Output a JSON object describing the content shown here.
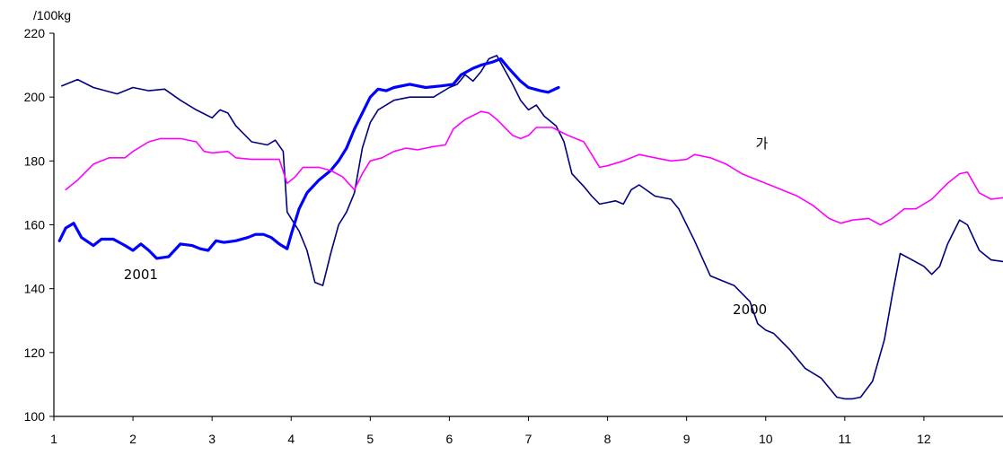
{
  "chart_data": {
    "type": "line",
    "title": "",
    "xlabel": "",
    "ylabel": "/100kg",
    "xlim": [
      1,
      13
    ],
    "ylim": [
      100,
      220
    ],
    "x_ticks": [
      1,
      2,
      3,
      4,
      5,
      6,
      7,
      8,
      9,
      10,
      11,
      12
    ],
    "y_ticks": [
      100,
      120,
      140,
      160,
      180,
      200,
      220
    ],
    "grid": false,
    "legend": "none",
    "series": [
      {
        "name": "2000",
        "color": "#000080",
        "label_at": [
          9.8,
          132
        ],
        "points": [
          [
            1.1,
            203.5
          ],
          [
            1.3,
            205.5
          ],
          [
            1.5,
            203
          ],
          [
            1.8,
            201
          ],
          [
            2.0,
            203
          ],
          [
            2.2,
            202
          ],
          [
            2.4,
            202.5
          ],
          [
            2.6,
            199
          ],
          [
            2.8,
            196
          ],
          [
            3.0,
            193.5
          ],
          [
            3.1,
            196
          ],
          [
            3.2,
            195
          ],
          [
            3.3,
            191
          ],
          [
            3.5,
            186
          ],
          [
            3.7,
            185
          ],
          [
            3.8,
            186.5
          ],
          [
            3.9,
            183
          ],
          [
            3.95,
            164
          ],
          [
            4.1,
            158
          ],
          [
            4.2,
            152
          ],
          [
            4.3,
            142
          ],
          [
            4.4,
            141
          ],
          [
            4.5,
            151
          ],
          [
            4.6,
            160
          ],
          [
            4.7,
            164
          ],
          [
            4.8,
            170
          ],
          [
            4.9,
            184
          ],
          [
            5.0,
            192
          ],
          [
            5.1,
            196
          ],
          [
            5.3,
            199
          ],
          [
            5.5,
            200
          ],
          [
            5.7,
            200
          ],
          [
            5.8,
            200
          ],
          [
            6.0,
            203
          ],
          [
            6.1,
            204
          ],
          [
            6.2,
            207
          ],
          [
            6.3,
            205
          ],
          [
            6.4,
            208
          ],
          [
            6.5,
            212
          ],
          [
            6.6,
            213
          ],
          [
            6.8,
            204
          ],
          [
            6.9,
            199
          ],
          [
            7.0,
            196
          ],
          [
            7.1,
            197.5
          ],
          [
            7.2,
            194
          ],
          [
            7.35,
            191
          ],
          [
            7.45,
            186
          ],
          [
            7.55,
            176
          ],
          [
            7.7,
            172
          ],
          [
            7.8,
            169
          ],
          [
            7.9,
            166.5
          ],
          [
            8.0,
            167
          ],
          [
            8.1,
            167.5
          ],
          [
            8.2,
            166.5
          ],
          [
            8.3,
            171
          ],
          [
            8.4,
            172.5
          ],
          [
            8.6,
            169
          ],
          [
            8.8,
            168
          ],
          [
            8.9,
            165
          ],
          [
            9.0,
            160
          ],
          [
            9.1,
            155
          ],
          [
            9.3,
            144
          ],
          [
            9.4,
            143
          ],
          [
            9.6,
            141
          ],
          [
            9.8,
            136
          ],
          [
            9.9,
            129
          ],
          [
            10.0,
            127
          ],
          [
            10.1,
            126
          ],
          [
            10.3,
            121
          ],
          [
            10.5,
            115
          ],
          [
            10.7,
            112
          ],
          [
            10.9,
            106
          ],
          [
            11.0,
            105.5
          ],
          [
            11.1,
            105.5
          ],
          [
            11.2,
            106
          ],
          [
            11.35,
            111
          ],
          [
            11.5,
            124
          ],
          [
            11.6,
            138
          ],
          [
            11.7,
            151
          ],
          [
            11.85,
            149
          ],
          [
            12.0,
            147
          ],
          [
            12.1,
            144.5
          ],
          [
            12.2,
            147
          ],
          [
            12.3,
            154
          ],
          [
            12.45,
            161.5
          ],
          [
            12.55,
            160
          ],
          [
            12.7,
            152
          ],
          [
            12.85,
            149
          ],
          [
            13.0,
            148.5
          ]
        ]
      },
      {
        "name": "2001",
        "color": "#0000ff",
        "label_at": [
          2.1,
          143
        ],
        "points": [
          [
            1.07,
            155
          ],
          [
            1.15,
            159
          ],
          [
            1.25,
            160.5
          ],
          [
            1.35,
            156
          ],
          [
            1.5,
            153.5
          ],
          [
            1.6,
            155.5
          ],
          [
            1.75,
            155.5
          ],
          [
            1.9,
            153.5
          ],
          [
            2.0,
            152
          ],
          [
            2.1,
            154
          ],
          [
            2.2,
            152
          ],
          [
            2.3,
            149.5
          ],
          [
            2.45,
            150
          ],
          [
            2.6,
            154
          ],
          [
            2.75,
            153.5
          ],
          [
            2.85,
            152.5
          ],
          [
            2.95,
            152
          ],
          [
            3.05,
            155
          ],
          [
            3.15,
            154.5
          ],
          [
            3.3,
            155
          ],
          [
            3.45,
            156
          ],
          [
            3.55,
            157
          ],
          [
            3.65,
            157
          ],
          [
            3.75,
            156
          ],
          [
            3.85,
            154
          ],
          [
            3.95,
            152.5
          ],
          [
            4.0,
            157
          ],
          [
            4.1,
            165
          ],
          [
            4.2,
            170
          ],
          [
            4.35,
            174
          ],
          [
            4.5,
            177
          ],
          [
            4.6,
            180
          ],
          [
            4.7,
            184
          ],
          [
            4.8,
            190
          ],
          [
            4.9,
            195
          ],
          [
            5.0,
            200
          ],
          [
            5.1,
            202.5
          ],
          [
            5.2,
            202
          ],
          [
            5.3,
            203
          ],
          [
            5.5,
            204
          ],
          [
            5.7,
            203
          ],
          [
            5.9,
            203.5
          ],
          [
            6.05,
            204
          ],
          [
            6.15,
            207
          ],
          [
            6.3,
            209
          ],
          [
            6.4,
            210
          ],
          [
            6.55,
            211
          ],
          [
            6.65,
            212
          ],
          [
            6.75,
            209
          ],
          [
            6.9,
            205
          ],
          [
            7.0,
            203
          ],
          [
            7.15,
            202
          ],
          [
            7.25,
            201.5
          ],
          [
            7.38,
            203
          ]
        ]
      },
      {
        "name": "가",
        "color": "#ff00ff",
        "label_at": [
          9.95,
          184
        ],
        "points": [
          [
            1.15,
            171
          ],
          [
            1.3,
            174
          ],
          [
            1.5,
            179
          ],
          [
            1.7,
            181
          ],
          [
            1.9,
            181
          ],
          [
            2.0,
            183
          ],
          [
            2.2,
            186
          ],
          [
            2.35,
            187
          ],
          [
            2.6,
            187
          ],
          [
            2.8,
            186
          ],
          [
            2.9,
            183
          ],
          [
            3.0,
            182.5
          ],
          [
            3.2,
            183
          ],
          [
            3.3,
            181
          ],
          [
            3.5,
            180.5
          ],
          [
            3.7,
            180.5
          ],
          [
            3.85,
            180.5
          ],
          [
            3.95,
            173
          ],
          [
            4.05,
            175
          ],
          [
            4.15,
            178
          ],
          [
            4.35,
            178
          ],
          [
            4.5,
            177
          ],
          [
            4.65,
            175
          ],
          [
            4.8,
            171
          ],
          [
            4.9,
            176
          ],
          [
            5.0,
            180
          ],
          [
            5.15,
            181
          ],
          [
            5.3,
            183
          ],
          [
            5.45,
            184
          ],
          [
            5.6,
            183.5
          ],
          [
            5.8,
            184.5
          ],
          [
            5.95,
            185
          ],
          [
            6.05,
            190
          ],
          [
            6.2,
            193
          ],
          [
            6.4,
            195.5
          ],
          [
            6.5,
            195
          ],
          [
            6.6,
            193
          ],
          [
            6.8,
            188
          ],
          [
            6.9,
            187
          ],
          [
            7.0,
            188
          ],
          [
            7.1,
            190.5
          ],
          [
            7.3,
            190.5
          ],
          [
            7.5,
            188
          ],
          [
            7.7,
            186
          ],
          [
            7.8,
            182
          ],
          [
            7.9,
            178
          ],
          [
            8.0,
            178.5
          ],
          [
            8.2,
            180
          ],
          [
            8.4,
            182
          ],
          [
            8.6,
            181
          ],
          [
            8.8,
            180
          ],
          [
            9.0,
            180.5
          ],
          [
            9.1,
            182
          ],
          [
            9.3,
            181
          ],
          [
            9.5,
            179
          ],
          [
            9.7,
            176
          ],
          [
            9.9,
            174
          ],
          [
            10.0,
            173
          ],
          [
            10.2,
            171
          ],
          [
            10.4,
            169
          ],
          [
            10.6,
            166
          ],
          [
            10.8,
            162
          ],
          [
            10.95,
            160.5
          ],
          [
            11.1,
            161.5
          ],
          [
            11.3,
            162
          ],
          [
            11.45,
            160
          ],
          [
            11.6,
            162
          ],
          [
            11.75,
            165
          ],
          [
            11.9,
            165
          ],
          [
            12.1,
            168
          ],
          [
            12.3,
            173
          ],
          [
            12.45,
            176
          ],
          [
            12.55,
            176.5
          ],
          [
            12.7,
            170
          ],
          [
            12.85,
            168
          ],
          [
            13.0,
            168.5
          ]
        ]
      }
    ]
  }
}
